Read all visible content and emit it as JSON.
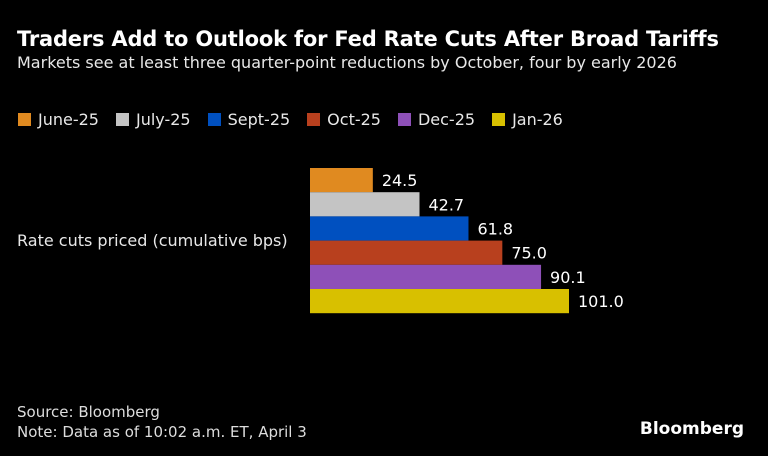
{
  "title": "Traders Add to Outlook for Fed Rate Cuts After Broad Tariffs",
  "subtitle": "Markets see at least three quarter-point reductions by October, four by early 2026",
  "source": "Source: Bloomberg",
  "note": "Note: Data as of 10:02 a.m. ET, April 3",
  "logo": "Bloomberg",
  "chart_data": {
    "type": "bar",
    "orientation": "horizontal",
    "categories": [
      "Rate cuts priced (cumulative bps)"
    ],
    "series": [
      {
        "name": "June-25",
        "values": [
          24.5
        ],
        "color": "#e08a20"
      },
      {
        "name": "July-25",
        "values": [
          42.7
        ],
        "color": "#c4c4c4"
      },
      {
        "name": "Sept-25",
        "values": [
          61.8
        ],
        "color": "#0050c0"
      },
      {
        "name": "Oct-25",
        "values": [
          75.0
        ],
        "color": "#b8401e"
      },
      {
        "name": "Dec-25",
        "values": [
          90.1
        ],
        "color": "#8e50b8"
      },
      {
        "name": "Jan-26",
        "values": [
          101.0
        ],
        "color": "#d8c000"
      }
    ],
    "data_labels": [
      "24.5",
      "42.7",
      "61.8",
      "75.0",
      "90.1",
      "101.0"
    ],
    "legend_placement": "top",
    "grid": false,
    "xlim": [
      0,
      101
    ]
  }
}
